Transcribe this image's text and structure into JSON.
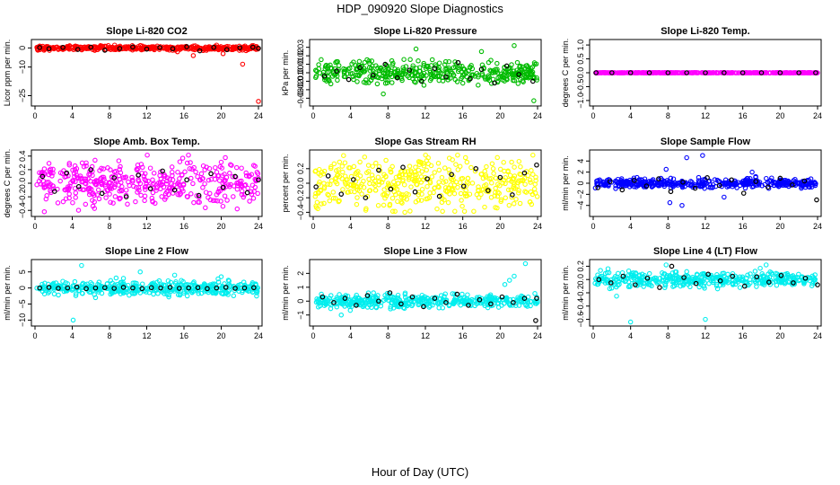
{
  "title": "HDP_090920  Slope Diagnostics",
  "xlabel": "Hour of Day (UTC)",
  "colors": {
    "black": "#000000"
  },
  "chart_data": [
    {
      "type": "scatter",
      "title": "Slope Li-820 CO2",
      "ylabel": "Licor ppm per min.",
      "color": "#ff0000",
      "xlim": [
        0,
        24
      ],
      "ylim": [
        -29,
        3
      ],
      "xticks": [
        0,
        4,
        8,
        12,
        16,
        20,
        24
      ],
      "yticks": [
        0,
        -10,
        -25
      ],
      "ytick_labels": [
        "0",
        "−10",
        "−25"
      ],
      "spread": 0.8,
      "outliers": [
        [
          22.3,
          -8.5
        ],
        [
          24,
          -28
        ],
        [
          17,
          -4
        ],
        [
          20.2,
          -3
        ],
        [
          19.5,
          1.5
        ],
        [
          15.3,
          -2
        ]
      ],
      "black_points": [
        [
          0.5,
          0.2
        ],
        [
          1.5,
          -0.4
        ],
        [
          3,
          0.3
        ],
        [
          4.6,
          -0.8
        ],
        [
          6,
          0.4
        ],
        [
          7.5,
          -1.2
        ],
        [
          9.1,
          -0.3
        ],
        [
          10.5,
          0.5
        ],
        [
          12,
          -0.6
        ],
        [
          13.4,
          0.2
        ],
        [
          14.8,
          -0.4
        ],
        [
          16.3,
          0.6
        ],
        [
          17.7,
          -1.5
        ],
        [
          19.2,
          0.3
        ],
        [
          20.6,
          -0.9
        ],
        [
          22,
          0.1
        ],
        [
          23.4,
          0.4
        ],
        [
          24,
          -0.2
        ]
      ]
    },
    {
      "type": "scatter",
      "title": "Slope Li-820 Pressure",
      "ylabel": "kPa per min.",
      "color": "#00bb00",
      "xlim": [
        0,
        24
      ],
      "ylim": [
        -0.036,
        0.036
      ],
      "xticks": [
        0,
        4,
        8,
        12,
        16,
        20,
        24
      ],
      "yticks": [
        0.03,
        0.02,
        0.01,
        0,
        -0.01,
        -0.02,
        -0.03
      ],
      "ytick_labels": [
        "0.03",
        "0.02",
        "0.01",
        "0.00",
        "−0.01",
        "−0.02",
        "−0.03"
      ],
      "spread": 0.009,
      "outliers": [
        [
          21.5,
          0.032
        ],
        [
          23.6,
          -0.033
        ],
        [
          11,
          0.028
        ],
        [
          7.5,
          -0.025
        ],
        [
          18,
          0.025
        ]
      ],
      "black_points": [
        [
          1.2,
          -0.004
        ],
        [
          2.5,
          0.002
        ],
        [
          3.8,
          -0.008
        ],
        [
          5,
          0.006
        ],
        [
          6.4,
          -0.003
        ],
        [
          7.7,
          0.01
        ],
        [
          9,
          -0.006
        ],
        [
          10.3,
          0.003
        ],
        [
          11.6,
          -0.01
        ],
        [
          13,
          0.005
        ],
        [
          14.2,
          -0.005
        ],
        [
          15.5,
          0.012
        ],
        [
          16.8,
          -0.007
        ],
        [
          18,
          0.004
        ],
        [
          19.4,
          -0.012
        ],
        [
          20.7,
          0.008
        ],
        [
          22,
          -0.002
        ],
        [
          23.5,
          -0.01
        ]
      ]
    },
    {
      "type": "scatter",
      "title": "Slope Li-820 Temp.",
      "ylabel": "degrees C per min.",
      "color": "#ff00ff",
      "xlim": [
        0,
        24
      ],
      "ylim": [
        -1.1,
        1.1
      ],
      "xticks": [
        0,
        4,
        8,
        12,
        16,
        20,
        24
      ],
      "yticks": [
        1,
        0.5,
        0,
        -0.5,
        -1
      ],
      "ytick_labels": [
        "1.0",
        "0.5",
        "0.0",
        "−0.5",
        "−1.0"
      ],
      "spread": 0.005,
      "outliers": [],
      "black_points": [
        [
          0.3,
          0
        ],
        [
          2,
          0
        ],
        [
          4,
          0
        ],
        [
          6,
          0
        ],
        [
          8,
          0
        ],
        [
          10,
          0
        ],
        [
          12,
          0
        ],
        [
          14,
          0
        ],
        [
          16,
          0
        ],
        [
          18,
          0
        ],
        [
          20,
          0
        ],
        [
          22,
          0
        ],
        [
          23.8,
          0
        ]
      ]
    },
    {
      "type": "scatter",
      "title": "Slope Amb. Box Temp.",
      "ylabel": "degrees C per min.",
      "color": "#ff00ff",
      "xlim": [
        0,
        24
      ],
      "ylim": [
        -0.45,
        0.45
      ],
      "xticks": [
        0,
        4,
        8,
        12,
        16,
        20,
        24
      ],
      "yticks": [
        0.4,
        0.2,
        0,
        -0.2,
        -0.4
      ],
      "ytick_labels": [
        "0.4",
        "0.2",
        "0.0",
        "−0.2",
        "−0.4"
      ],
      "spread": 0.22,
      "outliers": [
        [
          1,
          -0.42
        ],
        [
          9,
          0.33
        ],
        [
          5.5,
          0.3
        ],
        [
          20,
          0.31
        ]
      ],
      "black_points": [
        [
          0.8,
          0.1
        ],
        [
          2.1,
          -0.12
        ],
        [
          3.4,
          0.15
        ],
        [
          4.7,
          -0.05
        ],
        [
          6,
          0.2
        ],
        [
          7.2,
          -0.15
        ],
        [
          8.5,
          0.08
        ],
        [
          9.8,
          -0.2
        ],
        [
          11.1,
          0.12
        ],
        [
          12.4,
          -0.08
        ],
        [
          13.7,
          0.18
        ],
        [
          15,
          -0.1
        ],
        [
          16.3,
          0.05
        ],
        [
          17.6,
          -0.18
        ],
        [
          18.9,
          0.14
        ],
        [
          20.2,
          -0.06
        ],
        [
          21.5,
          0.1
        ],
        [
          22.8,
          -0.14
        ],
        [
          24,
          0.05
        ]
      ]
    },
    {
      "type": "scatter",
      "title": "Slope Gas Stream RH",
      "ylabel": "percent per min.",
      "color": "#ffff00",
      "xlim": [
        0,
        24
      ],
      "ylim": [
        -0.42,
        0.42
      ],
      "xticks": [
        0,
        4,
        8,
        12,
        16,
        20,
        24
      ],
      "yticks": [
        0.2,
        0,
        -0.2,
        -0.4
      ],
      "ytick_labels": [
        "0.2",
        "0.0",
        "−0.2",
        "−0.4"
      ],
      "spread": 0.25,
      "outliers": [
        [
          9.8,
          -0.4
        ],
        [
          5.5,
          0.36
        ],
        [
          0.5,
          -0.35
        ]
      ],
      "black_points": [
        [
          0.3,
          -0.05
        ],
        [
          1.6,
          0.1
        ],
        [
          3,
          -0.15
        ],
        [
          4.3,
          0.05
        ],
        [
          5.6,
          -0.2
        ],
        [
          7,
          0.18
        ],
        [
          8.3,
          -0.08
        ],
        [
          9.6,
          0.22
        ],
        [
          10.9,
          -0.12
        ],
        [
          12.2,
          0.06
        ],
        [
          13.5,
          -0.18
        ],
        [
          14.8,
          0.12
        ],
        [
          16.1,
          -0.04
        ],
        [
          17.4,
          0.2
        ],
        [
          18.7,
          -0.1
        ],
        [
          20,
          0.08
        ],
        [
          21.3,
          -0.16
        ],
        [
          22.6,
          0.14
        ],
        [
          23.9,
          0.25
        ]
      ]
    },
    {
      "type": "scatter",
      "title": "Slope Sample Flow",
      "ylabel": "ml/min per min.",
      "color": "#0000ff",
      "xlim": [
        0,
        24
      ],
      "ylim": [
        -5.5,
        5.5
      ],
      "xticks": [
        0,
        4,
        8,
        12,
        16,
        20,
        24
      ],
      "yticks": [
        4,
        2,
        0,
        -2,
        -4
      ],
      "ytick_labels": [
        "4",
        "2",
        "0",
        "−2",
        "−4"
      ],
      "spread": 0.6,
      "outliers": [
        [
          7.8,
          2.5
        ],
        [
          10,
          4.6
        ],
        [
          11.7,
          5
        ],
        [
          9.5,
          -4
        ],
        [
          8.2,
          -3.5
        ],
        [
          17,
          2
        ],
        [
          14,
          -2.5
        ]
      ],
      "black_points": [
        [
          0.5,
          -0.8
        ],
        [
          1.8,
          0.3
        ],
        [
          3.1,
          -1.2
        ],
        [
          4.4,
          0.5
        ],
        [
          5.7,
          -0.5
        ],
        [
          7,
          0.8
        ],
        [
          8.3,
          -1.5
        ],
        [
          9.6,
          0.2
        ],
        [
          10.9,
          -0.9
        ],
        [
          12.2,
          1
        ],
        [
          13.5,
          -0.4
        ],
        [
          14.8,
          0.6
        ],
        [
          16.1,
          -1.8
        ],
        [
          17.4,
          0.3
        ],
        [
          18.7,
          -0.7
        ],
        [
          20,
          0.9
        ],
        [
          21.3,
          -0.3
        ],
        [
          22.6,
          0.4
        ],
        [
          23.9,
          -3
        ]
      ]
    },
    {
      "type": "scatter",
      "title": "Slope Line 2 Flow",
      "ylabel": "ml/min per min.",
      "color": "#00eeee",
      "xlim": [
        0,
        24
      ],
      "ylim": [
        -11,
        8
      ],
      "xticks": [
        0,
        4,
        8,
        12,
        16,
        20,
        24
      ],
      "yticks": [
        5,
        0,
        -5,
        -10
      ],
      "ytick_labels": [
        "5",
        "0",
        "−5",
        "−10"
      ],
      "spread": 1.5,
      "outliers": [
        [
          4.1,
          -10
        ],
        [
          5,
          7
        ],
        [
          11.3,
          5
        ],
        [
          9.5,
          3
        ],
        [
          15,
          4
        ],
        [
          20,
          3.5
        ],
        [
          23.8,
          -2.5
        ],
        [
          6.5,
          -3
        ]
      ],
      "black_points": [
        [
          0.5,
          0
        ],
        [
          1.5,
          0.2
        ],
        [
          2.5,
          -0.1
        ],
        [
          3.5,
          0
        ],
        [
          4.5,
          0.3
        ],
        [
          5.5,
          -0.2
        ],
        [
          6.5,
          0
        ],
        [
          7.5,
          0.1
        ],
        [
          8.5,
          -0.1
        ],
        [
          9.5,
          0.2
        ],
        [
          10.5,
          0
        ],
        [
          11.5,
          -0.2
        ],
        [
          12.5,
          0.1
        ],
        [
          13.5,
          0
        ],
        [
          14.5,
          0.2
        ],
        [
          15.5,
          -0.1
        ],
        [
          16.5,
          0
        ],
        [
          17.5,
          0.1
        ],
        [
          18.5,
          -0.2
        ],
        [
          19.5,
          0
        ],
        [
          20.5,
          0.2
        ],
        [
          21.5,
          -0.1
        ],
        [
          22.5,
          0
        ],
        [
          23.5,
          0.1
        ]
      ]
    },
    {
      "type": "scatter",
      "title": "Slope Line 3 Flow",
      "ylabel": "ml/min per min.",
      "color": "#00eeee",
      "xlim": [
        0,
        24
      ],
      "ylim": [
        -1.6,
        2.8
      ],
      "xticks": [
        0,
        4,
        8,
        12,
        16,
        20,
        24
      ],
      "yticks": [
        2,
        1,
        0,
        -1
      ],
      "ytick_labels": [
        "2",
        "1",
        "0",
        "−1"
      ],
      "spread": 0.35,
      "outliers": [
        [
          21.5,
          1.8
        ],
        [
          22.7,
          2.7
        ],
        [
          21,
          1.5
        ],
        [
          20.5,
          1.2
        ],
        [
          3,
          -1
        ]
      ],
      "black_points": [
        [
          1,
          0.3
        ],
        [
          2.2,
          -0.1
        ],
        [
          3.4,
          0.2
        ],
        [
          4.6,
          -0.3
        ],
        [
          5.8,
          0.4
        ],
        [
          7,
          0
        ],
        [
          8.2,
          0.6
        ],
        [
          9.4,
          -0.2
        ],
        [
          10.6,
          0.3
        ],
        [
          11.8,
          -0.4
        ],
        [
          13,
          0.2
        ],
        [
          14.2,
          -0.1
        ],
        [
          15.4,
          0.5
        ],
        [
          16.6,
          -0.3
        ],
        [
          17.8,
          0.1
        ],
        [
          19,
          -0.2
        ],
        [
          20.2,
          0.3
        ],
        [
          21.4,
          -0.1
        ],
        [
          22.6,
          0.2
        ],
        [
          23.8,
          -1.4
        ],
        [
          23.9,
          0.2
        ]
      ]
    },
    {
      "type": "scatter",
      "title": "Slope Line 4 (LT) Flow",
      "ylabel": "ml/min per min.",
      "color": "#00eeee",
      "xlim": [
        0,
        24
      ],
      "ylim": [
        -0.66,
        0.26
      ],
      "xticks": [
        0,
        4,
        8,
        12,
        16,
        20,
        24
      ],
      "yticks": [
        0.2,
        0,
        -0.2,
        -0.4,
        -0.6
      ],
      "ytick_labels": [
        "0.2",
        "0.0",
        "−0.2",
        "−0.4",
        "−0.6"
      ],
      "spread": 0.08,
      "outliers": [
        [
          4,
          -0.64
        ],
        [
          12,
          -0.6
        ],
        [
          18.5,
          0.22
        ],
        [
          7.8,
          0.22
        ],
        [
          2.5,
          -0.25
        ]
      ],
      "black_points": [
        [
          0.6,
          0
        ],
        [
          1.9,
          -0.05
        ],
        [
          3.2,
          0.05
        ],
        [
          4.5,
          -0.08
        ],
        [
          5.8,
          0.02
        ],
        [
          7.1,
          -0.12
        ],
        [
          8.4,
          0.2
        ],
        [
          9.7,
          0.03
        ],
        [
          11,
          -0.06
        ],
        [
          12.3,
          0.08
        ],
        [
          13.6,
          -0.02
        ],
        [
          14.9,
          0.05
        ],
        [
          16.2,
          -0.1
        ],
        [
          17.5,
          0.04
        ],
        [
          18.8,
          -0.04
        ],
        [
          20.1,
          0.06
        ],
        [
          21.4,
          -0.05
        ],
        [
          22.7,
          0.02
        ],
        [
          24,
          -0.08
        ]
      ]
    }
  ]
}
